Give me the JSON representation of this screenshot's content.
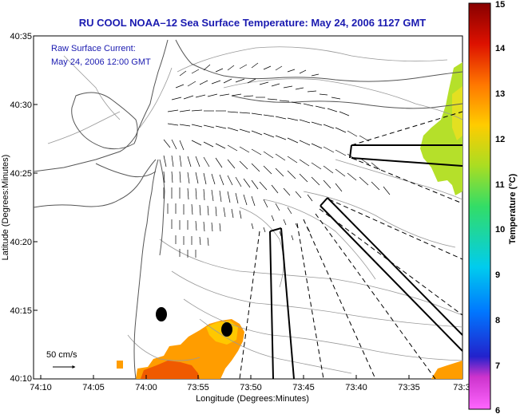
{
  "title": "RU COOL  NOAA–12  Sea Surface Temperature:  May 24, 2006 1127 GMT",
  "annotation": {
    "line1": "Raw Surface Current:",
    "line2": "May 24, 2006 12:00 GMT"
  },
  "x_axis": {
    "label": "Longitude (Degrees:Minutes)",
    "ticks": [
      "74:10",
      "74:05",
      "74:00",
      "73:55",
      "73:50",
      "73:45",
      "73:40",
      "73:35",
      "73:3"
    ]
  },
  "y_axis": {
    "label": "Latitude (Degrees:Minutes)",
    "ticks": [
      "40:35",
      "40:30",
      "40:25",
      "40:20",
      "40:15",
      "40:10"
    ]
  },
  "scale_arrow_label": "50 cm/s",
  "colorbar": {
    "label": "Temperature (°C)",
    "ticks": [
      "15",
      "14",
      "13",
      "12",
      "11",
      "10",
      "9",
      "8",
      "7",
      "6"
    ],
    "min": 6,
    "max": 15,
    "colors": [
      "#ff66ff",
      "#cc33cc",
      "#2222cc",
      "#0077ff",
      "#00ccee",
      "#33dd66",
      "#aadd22",
      "#ffcc00",
      "#ff7700",
      "#dd1100",
      "#880000"
    ]
  },
  "colors": {
    "title": "#1a1ab0",
    "land_outline": "#555555",
    "bathymetry": "#999999"
  }
}
